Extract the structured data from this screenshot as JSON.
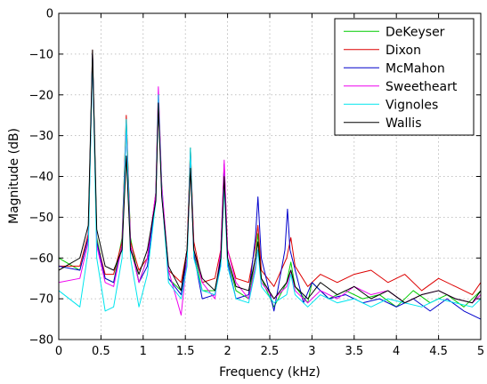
{
  "chart_data": {
    "type": "line",
    "xlabel": "Frequency (kHz)",
    "ylabel": "Magnitude (dB)",
    "xlim": [
      0,
      5
    ],
    "ylim": [
      -80,
      0
    ],
    "x_ticks": [
      "0",
      "0.5",
      "1",
      "1.5",
      "2",
      "2.5",
      "3",
      "3.5",
      "4",
      "4.5",
      "5"
    ],
    "y_ticks": [
      "0",
      "−10",
      "−20",
      "−30",
      "−40",
      "−50",
      "−60",
      "−70",
      "−80"
    ],
    "grid": true,
    "legend_position": "top-right",
    "series": [
      {
        "name": "DeKeyser",
        "color": "#00cc00",
        "x": [
          0.0,
          0.25,
          0.35,
          0.4,
          0.45,
          0.55,
          0.65,
          0.75,
          0.8,
          0.85,
          0.95,
          1.05,
          1.15,
          1.18,
          1.22,
          1.3,
          1.45,
          1.52,
          1.56,
          1.6,
          1.7,
          1.85,
          1.92,
          1.96,
          2.0,
          2.1,
          2.25,
          2.33,
          2.36,
          2.4,
          2.55,
          2.7,
          2.75,
          2.8,
          2.95,
          3.0,
          3.2,
          3.4,
          3.6,
          3.8,
          4.0,
          4.2,
          4.4,
          4.6,
          4.8,
          5.0
        ],
        "y": [
          -60,
          -63,
          -55,
          -10,
          -55,
          -65,
          -66,
          -55,
          -26,
          -55,
          -66,
          -60,
          -45,
          -22,
          -42,
          -65,
          -68,
          -60,
          -33,
          -58,
          -68,
          -68,
          -60,
          -40,
          -60,
          -68,
          -70,
          -60,
          -54,
          -65,
          -72,
          -66,
          -61,
          -67,
          -71,
          -66,
          -70,
          -68,
          -70,
          -69,
          -72,
          -68,
          -71,
          -69,
          -72,
          -68
        ]
      },
      {
        "name": "Dixon",
        "color": "#dd0000",
        "x": [
          0.0,
          0.25,
          0.35,
          0.4,
          0.45,
          0.55,
          0.65,
          0.75,
          0.8,
          0.85,
          0.95,
          1.05,
          1.15,
          1.18,
          1.22,
          1.3,
          1.45,
          1.52,
          1.56,
          1.6,
          1.7,
          1.85,
          1.92,
          1.96,
          2.0,
          2.1,
          2.25,
          2.33,
          2.36,
          2.4,
          2.55,
          2.7,
          2.75,
          2.8,
          2.95,
          3.1,
          3.3,
          3.5,
          3.7,
          3.9,
          4.1,
          4.3,
          4.5,
          4.7,
          4.9,
          5.0
        ],
        "y": [
          -62,
          -62,
          -54,
          -9,
          -56,
          -64,
          -64,
          -56,
          -25,
          -56,
          -63,
          -60,
          -44,
          -20,
          -43,
          -63,
          -66,
          -58,
          -33,
          -56,
          -66,
          -65,
          -58,
          -37,
          -58,
          -65,
          -66,
          -57,
          -52,
          -63,
          -67,
          -60,
          -55,
          -62,
          -67,
          -64,
          -66,
          -64,
          -63,
          -66,
          -64,
          -68,
          -65,
          -67,
          -69,
          -66
        ]
      },
      {
        "name": "McMahon",
        "color": "#0000cc",
        "x": [
          0.0,
          0.25,
          0.35,
          0.4,
          0.45,
          0.55,
          0.65,
          0.75,
          0.8,
          0.85,
          0.95,
          1.05,
          1.15,
          1.18,
          1.22,
          1.3,
          1.45,
          1.52,
          1.56,
          1.6,
          1.7,
          1.85,
          1.92,
          1.96,
          2.0,
          2.1,
          2.25,
          2.33,
          2.36,
          2.4,
          2.55,
          2.68,
          2.71,
          2.74,
          2.9,
          3.0,
          3.2,
          3.4,
          3.6,
          3.8,
          4.0,
          4.2,
          4.4,
          4.6,
          4.8,
          5.0
        ],
        "y": [
          -62,
          -63,
          -55,
          -10,
          -56,
          -65,
          -66,
          -57,
          -27,
          -57,
          -66,
          -62,
          -45,
          -21,
          -44,
          -65,
          -69,
          -60,
          -35,
          -59,
          -70,
          -69,
          -61,
          -37,
          -61,
          -70,
          -69,
          -55,
          -45,
          -60,
          -73,
          -58,
          -48,
          -58,
          -71,
          -66,
          -70,
          -69,
          -71,
          -70,
          -72,
          -70,
          -73,
          -70,
          -73,
          -75
        ]
      },
      {
        "name": "Sweetheart",
        "color": "#ee00ee",
        "x": [
          0.0,
          0.25,
          0.35,
          0.4,
          0.45,
          0.55,
          0.65,
          0.75,
          0.8,
          0.85,
          0.95,
          1.05,
          1.15,
          1.18,
          1.22,
          1.3,
          1.45,
          1.52,
          1.56,
          1.6,
          1.7,
          1.85,
          1.92,
          1.96,
          2.0,
          2.1,
          2.25,
          2.33,
          2.36,
          2.4,
          2.55,
          2.7,
          2.75,
          2.8,
          2.95,
          3.1,
          3.3,
          3.5,
          3.7,
          3.9,
          4.1,
          4.3,
          4.5,
          4.7,
          4.9,
          5.0
        ],
        "y": [
          -66,
          -65,
          -56,
          -10,
          -57,
          -66,
          -67,
          -57,
          -27,
          -57,
          -66,
          -60,
          -44,
          -18,
          -42,
          -63,
          -74,
          -60,
          -34,
          -58,
          -66,
          -70,
          -58,
          -36,
          -58,
          -66,
          -70,
          -62,
          -58,
          -66,
          -70,
          -67,
          -63,
          -68,
          -71,
          -68,
          -70,
          -67,
          -69,
          -68,
          -71,
          -69,
          -68,
          -70,
          -71,
          -69
        ]
      },
      {
        "name": "Vignoles",
        "color": "#00e5ee",
        "x": [
          0.0,
          0.25,
          0.35,
          0.4,
          0.45,
          0.55,
          0.65,
          0.75,
          0.8,
          0.85,
          0.95,
          1.05,
          1.15,
          1.18,
          1.22,
          1.3,
          1.45,
          1.52,
          1.56,
          1.6,
          1.7,
          1.85,
          1.92,
          1.96,
          2.0,
          2.1,
          2.25,
          2.33,
          2.36,
          2.4,
          2.55,
          2.7,
          2.75,
          2.8,
          2.95,
          3.1,
          3.3,
          3.5,
          3.7,
          3.9,
          4.1,
          4.3,
          4.5,
          4.7,
          4.9,
          5.0
        ],
        "y": [
          -68,
          -72,
          -58,
          -10,
          -60,
          -73,
          -72,
          -60,
          -26,
          -60,
          -72,
          -64,
          -46,
          -20,
          -44,
          -66,
          -70,
          -62,
          -33,
          -60,
          -68,
          -69,
          -62,
          -42,
          -62,
          -70,
          -71,
          -63,
          -58,
          -67,
          -71,
          -69,
          -64,
          -69,
          -72,
          -69,
          -71,
          -70,
          -72,
          -70,
          -71,
          -72,
          -70,
          -71,
          -72,
          -70
        ]
      },
      {
        "name": "Wallis",
        "color": "#000000",
        "x": [
          0.0,
          0.25,
          0.35,
          0.4,
          0.45,
          0.55,
          0.65,
          0.75,
          0.8,
          0.85,
          0.95,
          1.05,
          1.15,
          1.18,
          1.22,
          1.3,
          1.45,
          1.52,
          1.56,
          1.6,
          1.7,
          1.85,
          1.92,
          1.96,
          2.0,
          2.1,
          2.25,
          2.33,
          2.36,
          2.4,
          2.55,
          2.7,
          2.75,
          2.8,
          2.95,
          3.1,
          3.3,
          3.5,
          3.7,
          3.9,
          4.1,
          4.3,
          4.5,
          4.7,
          4.9,
          5.0
        ],
        "y": [
          -63,
          -60,
          -52,
          -9,
          -53,
          -62,
          -63,
          -58,
          -35,
          -58,
          -64,
          -58,
          -46,
          -22,
          -45,
          -62,
          -68,
          -58,
          -38,
          -58,
          -65,
          -68,
          -60,
          -40,
          -60,
          -67,
          -68,
          -60,
          -56,
          -65,
          -70,
          -66,
          -63,
          -67,
          -70,
          -66,
          -69,
          -67,
          -70,
          -68,
          -71,
          -69,
          -68,
          -70,
          -71,
          -68
        ]
      }
    ]
  }
}
